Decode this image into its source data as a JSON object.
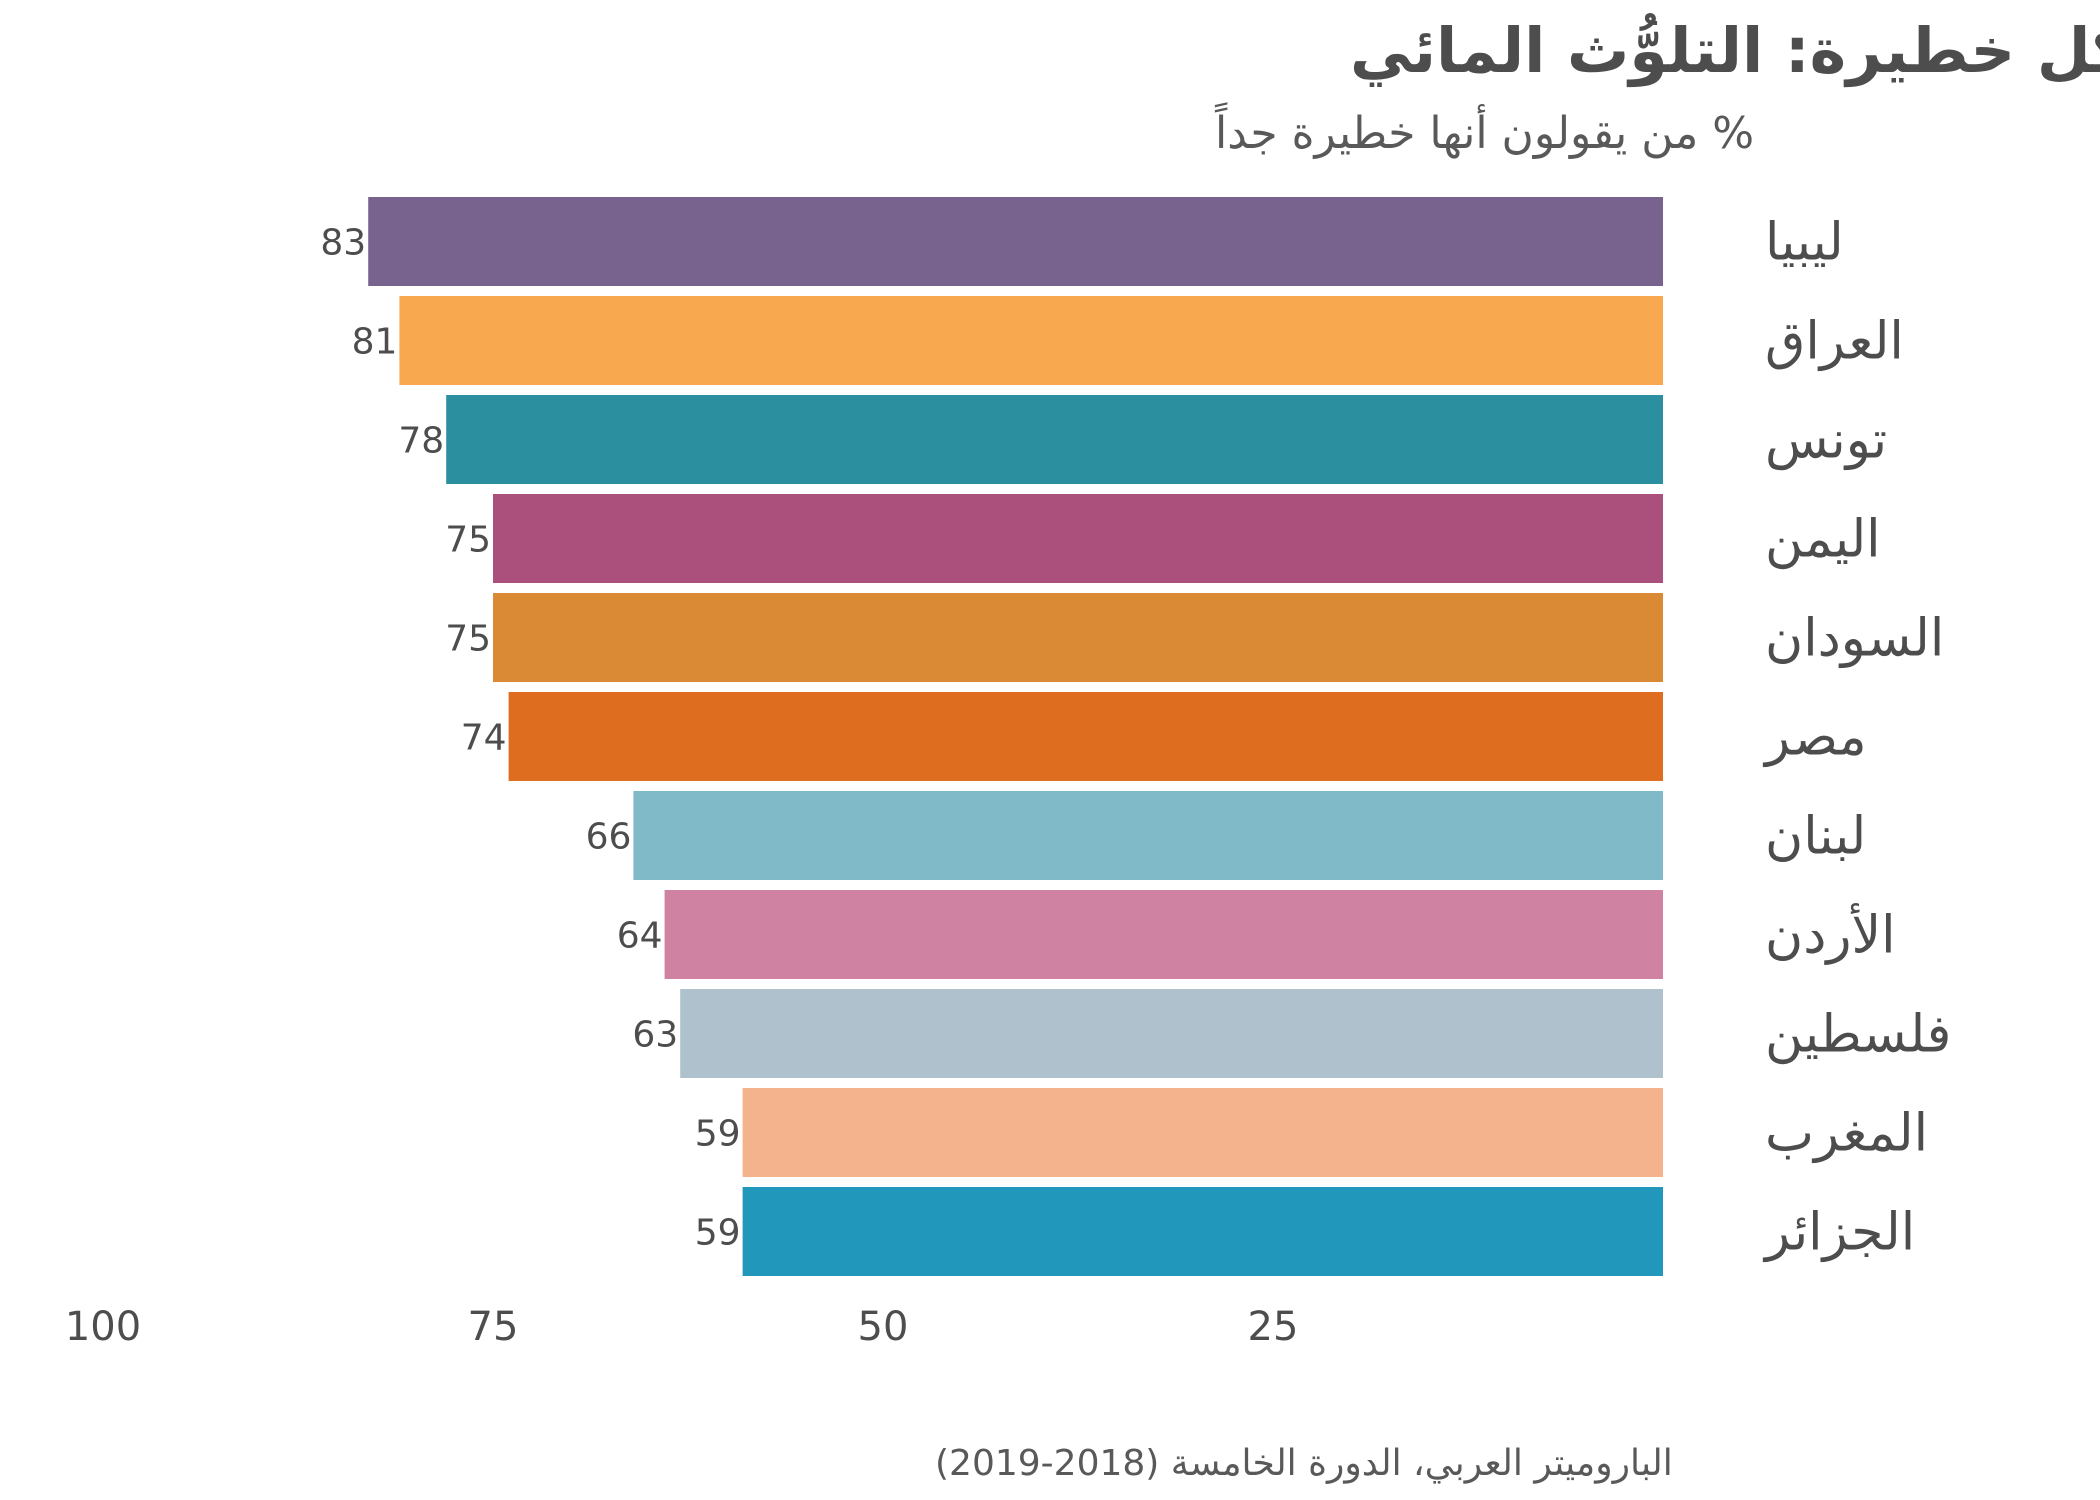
{
  "chart_data": {
    "type": "bar",
    "orientation": "horizontal",
    "title": "مشاكل خطيرة: التلوُّث المائي",
    "subtitle": "% من يقولون أنها خطيرة جداً",
    "source": "الباروميتر العربي، الدورة الخامسة (2018-2019)",
    "categories": [
      "ليبيا",
      "العراق",
      "تونس",
      "اليمن",
      "السودان",
      "مصر",
      "لبنان",
      "الأردن",
      "فلسطين",
      "المغرب",
      "الجزائر"
    ],
    "values": [
      83,
      81,
      78,
      75,
      75,
      74,
      66,
      64,
      63,
      59,
      59
    ],
    "colors": [
      "#78638e",
      "#f8a84f",
      "#2b8f9f",
      "#ab4f7c",
      "#da8a35",
      "#df6d20",
      "#80b9c7",
      "#cf82a1",
      "#afc1cd",
      "#f4b38d",
      "#2197bc"
    ],
    "x_ticks": [
      "100",
      "75",
      "50",
      "25"
    ],
    "xlim": [
      0,
      100
    ],
    "x_reversed": true,
    "grid": false,
    "legend": "none"
  }
}
